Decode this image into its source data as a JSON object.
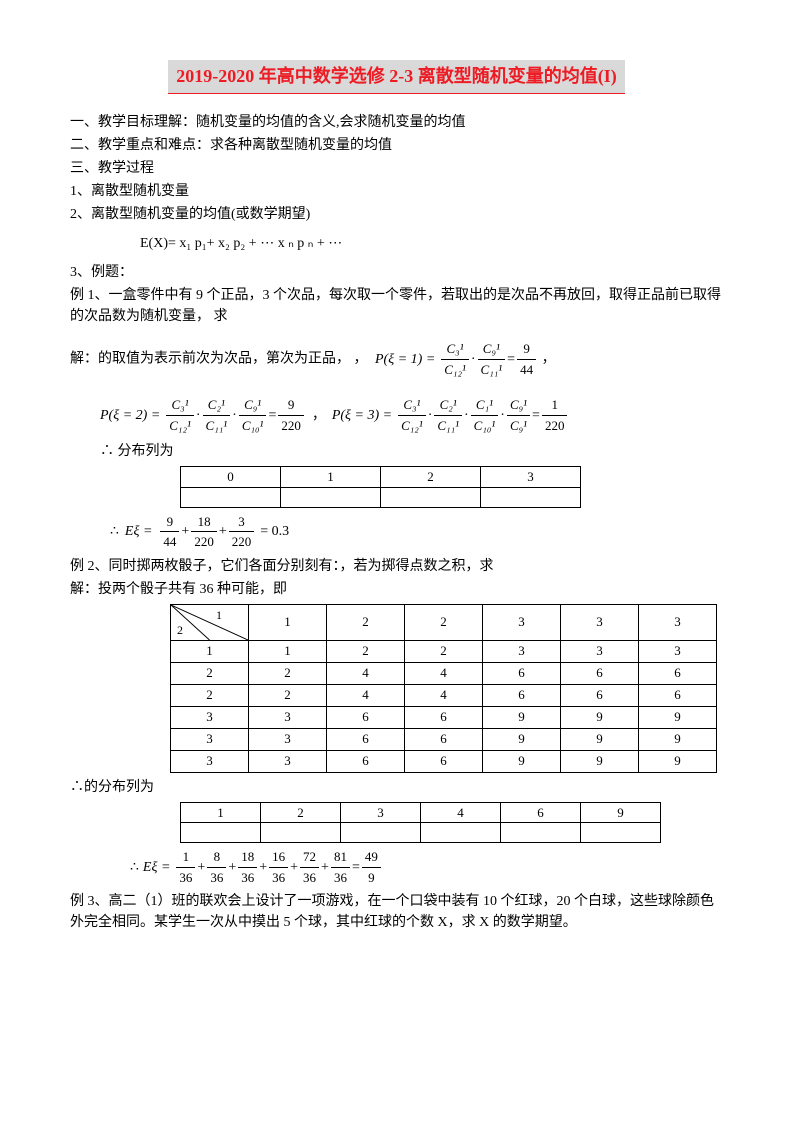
{
  "title": "2019-2020 年高中数学选修 2-3 离散型随机变量的均值(I)",
  "sec1": "一、教学目标理解：随机变量的均值的含义,会求随机变量的均值",
  "sec2": "二、教学重点和难点：求各种离散型随机变量的均值",
  "sec3": "三、教学过程",
  "sec3_1": "1、离散型随机变量",
  "sec3_2": "2、离散型随机变量的均值(或数学期望)",
  "formula_ex": "E(X)= x₁ p₁+ x₂ p₂ + ⋯ x ₙ p ₙ + ⋯",
  "sec3_3": "3、例题：",
  "ex1": "例 1、一盒零件中有 9 个正品，3 个次品，每次取一个零件，若取出的是次品不再放回，取得正品前已取得的次品数为随机变量， 求",
  "solve1_a": "解：的取值为表示前次为次品，第次为正品， ，",
  "p1_lhs": "P(ξ = 1) =",
  "p1_result": "，",
  "p2_lhs": "P(ξ = 2) =",
  "p2_mid": "，",
  "p3_lhs": "P(ξ = 3) =",
  "dist_label": "∴ 分布列为",
  "table1": {
    "headers": [
      "0",
      "1",
      "2",
      "3"
    ]
  },
  "exi_lhs": "∴",
  "exi_eq": "= 0.3",
  "ex2": "例 2、同时掷两枚骰子，它们各面分别刻有：，若为掷得点数之积，求",
  "solve2": "解：投两个骰子共有 36 种可能，即",
  "table2": {
    "corner_top": "1",
    "corner_bottom": "2",
    "col_headers": [
      "1",
      "2",
      "2",
      "3",
      "3",
      "3"
    ],
    "rows": [
      [
        "1",
        "1",
        "2",
        "2",
        "3",
        "3",
        "3"
      ],
      [
        "2",
        "2",
        "4",
        "4",
        "6",
        "6",
        "6"
      ],
      [
        "2",
        "2",
        "4",
        "4",
        "6",
        "6",
        "6"
      ],
      [
        "3",
        "3",
        "6",
        "6",
        "9",
        "9",
        "9"
      ],
      [
        "3",
        "3",
        "6",
        "6",
        "9",
        "9",
        "9"
      ],
      [
        "3",
        "3",
        "6",
        "6",
        "9",
        "9",
        "9"
      ]
    ]
  },
  "dist2_label": "∴的分布列为",
  "table3": {
    "headers": [
      "1",
      "2",
      "3",
      "4",
      "6",
      "9"
    ]
  },
  "exi2_lhs": "∴",
  "ex3": "例 3、高二（1）班的联欢会上设计了一项游戏，在一个口袋中装有 10 个红球，20 个白球，这些球除颜色外完全相同。某学生一次从中摸出 5 个球，其中红球的个数 X，求 X 的数学期望。",
  "fracs": {
    "c31": {
      "n": "C₃¹",
      "d": "C₁₂¹"
    },
    "c91_11": {
      "n": "C₉¹",
      "d": "C₁₁¹"
    },
    "f9_44": {
      "n": "9",
      "d": "44"
    },
    "c21_11": {
      "n": "C₂¹",
      "d": "C₁₁¹"
    },
    "c91_10": {
      "n": "C₉¹",
      "d": "C₁₀¹"
    },
    "f9_220": {
      "n": "9",
      "d": "220"
    },
    "c11_10": {
      "n": "C₁¹",
      "d": "C₁₀¹"
    },
    "c91_9": {
      "n": "C₉¹",
      "d": "C₉¹"
    },
    "f1_220": {
      "n": "1",
      "d": "220"
    },
    "e1": {
      "n": "9",
      "d": "44"
    },
    "e2": {
      "n": "18",
      "d": "220"
    },
    "e3": {
      "n": "3",
      "d": "220"
    },
    "g1": {
      "n": "1",
      "d": "36"
    },
    "g2": {
      "n": "8",
      "d": "36"
    },
    "g3": {
      "n": "18",
      "d": "36"
    },
    "g4": {
      "n": "16",
      "d": "36"
    },
    "g5": {
      "n": "72",
      "d": "36"
    },
    "g6": {
      "n": "81",
      "d": "36"
    },
    "g7": {
      "n": "49",
      "d": "9"
    }
  }
}
